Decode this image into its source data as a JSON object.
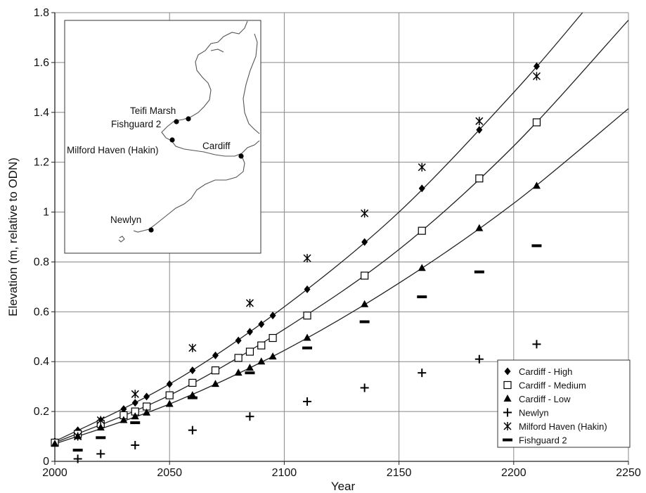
{
  "chart_data": {
    "type": "scatter",
    "title": "",
    "xlabel": "Year",
    "ylabel": "Elevation (m, relative to ODN)",
    "xlim": [
      2000,
      2250
    ],
    "ylim": [
      0,
      1.8
    ],
    "xticks": [
      2000,
      2050,
      2100,
      2150,
      2200,
      2250
    ],
    "yticks": [
      0,
      0.2,
      0.4,
      0.6,
      0.8,
      1,
      1.2,
      1.4,
      1.6,
      1.8
    ],
    "xtick_labels": [
      "2000",
      "2050",
      "2100",
      "2150",
      "2200",
      "2250"
    ],
    "ytick_labels": [
      "0",
      "0.2",
      "0.4",
      "0.6",
      "0.8",
      "1",
      "1.2",
      "1.4",
      "1.6",
      "1.8"
    ],
    "grid": true,
    "legend_position": "bottom-right",
    "series": [
      {
        "name": "Cardiff - High",
        "marker": "diamond",
        "color": "#000000",
        "x": [
          2000,
          2010,
          2020,
          2030,
          2035,
          2040,
          2050,
          2060,
          2070,
          2080,
          2085,
          2090,
          2095,
          2110,
          2135,
          2160,
          2185,
          2210
        ],
        "y": [
          0.08,
          0.125,
          0.165,
          0.21,
          0.235,
          0.26,
          0.31,
          0.365,
          0.425,
          0.485,
          0.52,
          0.55,
          0.585,
          0.69,
          0.88,
          1.095,
          1.33,
          1.585
        ]
      },
      {
        "name": "Cardiff - Medium",
        "marker": "open-square",
        "color": "#000000",
        "x": [
          2000,
          2010,
          2020,
          2030,
          2035,
          2040,
          2050,
          2060,
          2070,
          2080,
          2085,
          2090,
          2095,
          2110,
          2135,
          2160,
          2185,
          2210
        ],
        "y": [
          0.075,
          0.11,
          0.15,
          0.185,
          0.2,
          0.22,
          0.265,
          0.315,
          0.365,
          0.415,
          0.44,
          0.465,
          0.495,
          0.585,
          0.745,
          0.925,
          1.135,
          1.36
        ]
      },
      {
        "name": "Cardiff - Low",
        "marker": "triangle",
        "color": "#000000",
        "x": [
          2000,
          2010,
          2020,
          2030,
          2035,
          2040,
          2050,
          2060,
          2070,
          2080,
          2085,
          2090,
          2095,
          2110,
          2135,
          2160,
          2185,
          2210
        ],
        "y": [
          0.07,
          0.1,
          0.135,
          0.165,
          0.18,
          0.195,
          0.23,
          0.265,
          0.31,
          0.355,
          0.375,
          0.4,
          0.42,
          0.495,
          0.63,
          0.775,
          0.935,
          1.105
        ]
      },
      {
        "name": "Newlyn",
        "marker": "plus",
        "color": "#000000",
        "x": [
          2010,
          2020,
          2035,
          2060,
          2085,
          2110,
          2135,
          2160,
          2185,
          2210
        ],
        "y": [
          0.01,
          0.03,
          0.065,
          0.125,
          0.18,
          0.24,
          0.295,
          0.355,
          0.41,
          0.47
        ]
      },
      {
        "name": "Milford Haven (Hakin)",
        "marker": "asterisk",
        "color": "#000000",
        "x": [
          2010,
          2020,
          2035,
          2060,
          2085,
          2110,
          2135,
          2160,
          2185,
          2210
        ],
        "y": [
          0.1,
          0.165,
          0.27,
          0.455,
          0.635,
          0.815,
          0.995,
          1.18,
          1.365,
          1.545
        ]
      },
      {
        "name": "Fishguard 2",
        "marker": "dash",
        "color": "#000000",
        "x": [
          2010,
          2020,
          2035,
          2060,
          2085,
          2110,
          2135,
          2160,
          2185,
          2210
        ],
        "y": [
          0.045,
          0.095,
          0.155,
          0.255,
          0.355,
          0.455,
          0.56,
          0.66,
          0.76,
          0.865
        ]
      }
    ],
    "trendlines": [
      {
        "of": "Cardiff - High",
        "x": [
          2000,
          2050,
          2100,
          2150,
          2200,
          2230
        ],
        "y": [
          0.08,
          0.31,
          0.62,
          1.0,
          1.48,
          1.8
        ]
      },
      {
        "of": "Cardiff - Medium",
        "x": [
          2000,
          2050,
          2100,
          2150,
          2200,
          2250
        ],
        "y": [
          0.075,
          0.265,
          0.53,
          0.85,
          1.265,
          1.77
        ]
      },
      {
        "of": "Cardiff - Low",
        "x": [
          2000,
          2050,
          2100,
          2150,
          2200,
          2250
        ],
        "y": [
          0.07,
          0.23,
          0.445,
          0.715,
          1.035,
          1.415
        ]
      }
    ],
    "inset_map": {
      "labels": [
        "Teifi Marsh",
        "Fishguard 2",
        "Milford Haven (Hakin)",
        "Cardiff",
        "Newlyn"
      ]
    }
  }
}
